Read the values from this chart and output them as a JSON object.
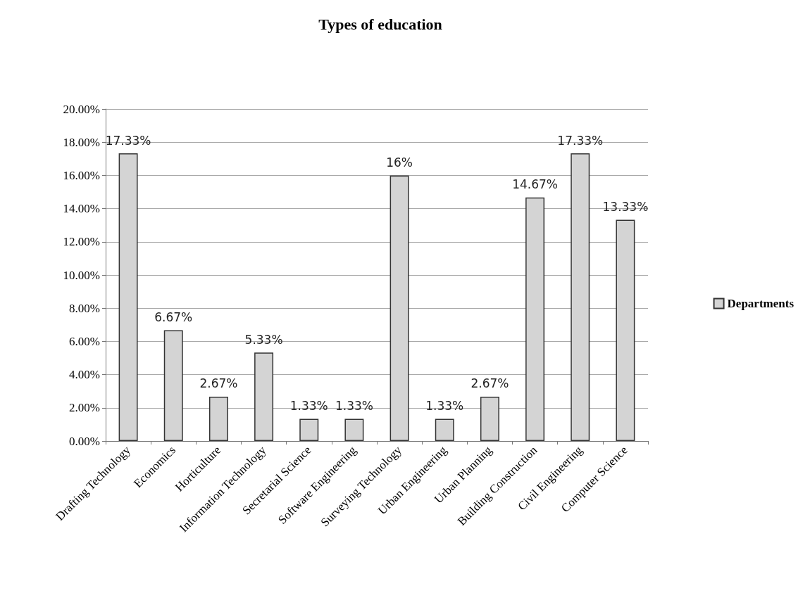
{
  "chart_data": {
    "type": "bar",
    "title": "Types of education",
    "categories": [
      "Drafting Technology",
      "Economics",
      "Horticulture",
      "Information Technology",
      "Secretarial Science",
      "Software Engineering",
      "Surveying Technology",
      "Urban Engineering",
      "Urban Planning",
      "Building Construction",
      "Civil Engineering",
      "Computer Science"
    ],
    "series": [
      {
        "name": "Departments",
        "color": "#d4d4d4",
        "values": [
          17.33,
          6.67,
          2.67,
          5.33,
          1.33,
          1.33,
          16,
          1.33,
          2.67,
          14.67,
          17.33,
          13.33
        ],
        "value_labels": [
          "17.33%",
          "6.67%",
          "2.67%",
          "5.33%",
          "1.33%",
          "1.33%",
          "16%",
          "1.33%",
          "2.67%",
          "14.67%",
          "17.33%",
          "13.33%"
        ]
      }
    ],
    "ylim": [
      0,
      20
    ],
    "yticks": [
      {
        "value": 0,
        "label": "0.00%"
      },
      {
        "value": 2,
        "label": "2.00%"
      },
      {
        "value": 4,
        "label": "4.00%"
      },
      {
        "value": 6,
        "label": "6.00%"
      },
      {
        "value": 8,
        "label": "8.00%"
      },
      {
        "value": 10,
        "label": "10.00%"
      },
      {
        "value": 12,
        "label": "12.00%"
      },
      {
        "value": 14,
        "label": "14.00%"
      },
      {
        "value": 16,
        "label": "16.00%"
      },
      {
        "value": 18,
        "label": "18.00%"
      },
      {
        "value": 20,
        "label": "20.00%"
      }
    ],
    "grid": "y",
    "legend": "right"
  }
}
